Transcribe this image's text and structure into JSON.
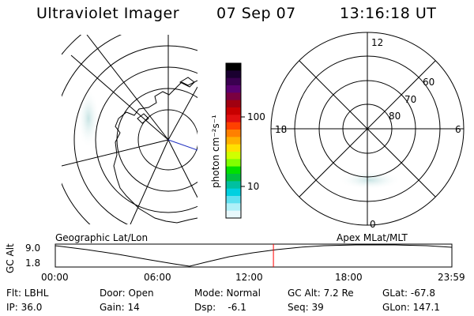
{
  "header": {
    "title": "Ultraviolet Imager",
    "date": "07 Sep 07",
    "time": "13:16:18 UT"
  },
  "colorbar": {
    "unit_label": "photon cm⁻²s⁻¹",
    "ticks": [
      "100",
      "10"
    ],
    "colors": [
      "#000000",
      "#1a0030",
      "#3a0050",
      "#5a0070",
      "#7a0040",
      "#a00010",
      "#c80000",
      "#e01010",
      "#ff4000",
      "#ff8000",
      "#ffb000",
      "#ffe000",
      "#d0ff00",
      "#80ff00",
      "#00e000",
      "#00c040",
      "#00c0a0",
      "#00d0e0",
      "#60e0f0",
      "#b0f0f8",
      "#e8f8fc"
    ]
  },
  "polar_grid": {
    "mlt_labels": {
      "top": "12",
      "left": "18",
      "right": "6",
      "bottom": "0"
    },
    "lat_labels": [
      "60",
      "70",
      "80"
    ]
  },
  "panel_labels": {
    "left": "Geographic Lat/Lon",
    "right": "Apex MLat/MLT"
  },
  "altitude_plot": {
    "ylabel": "GC Alt",
    "yticks": [
      "9.0",
      "1.8"
    ],
    "xticks": [
      "00:00",
      "06:00",
      "12:00",
      "18:00",
      "23:59"
    ],
    "current_time_fraction": 0.55,
    "marker_color": "#ff0000"
  },
  "info": {
    "filter": "Flt: LBHL",
    "ip": "IP: 36.0",
    "door": "Door: Open",
    "gain": "Gain: 14",
    "mode": "Mode: Normal",
    "dsp": "Dsp:    -6.1",
    "gc_alt": "GC Alt: 7.2 Re",
    "seq": "Seq: 39",
    "glat": "GLat: -67.8",
    "glon": "GLon: 147.1"
  }
}
